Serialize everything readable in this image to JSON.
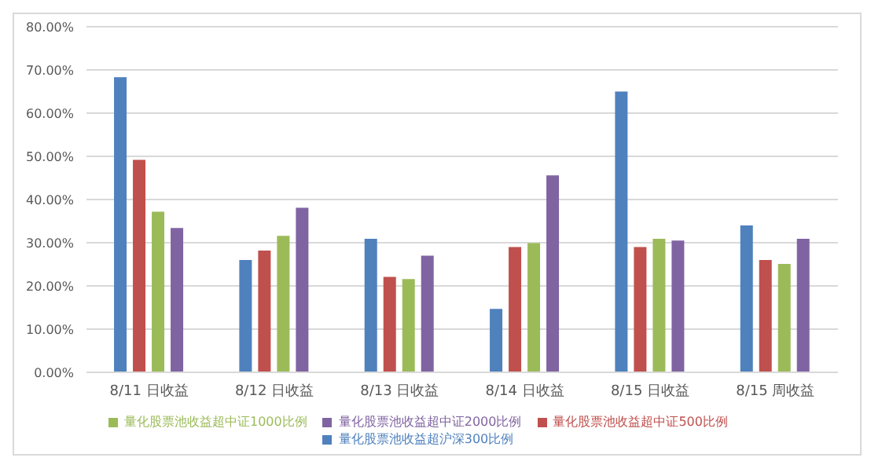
{
  "chart_data": {
    "type": "bar",
    "categories": [
      "8/11 日收益",
      "8/12 日收益",
      "8/13 日收益",
      "8/14 日收益",
      "8/15 日收益",
      "8/15 周收益"
    ],
    "series": [
      {
        "name": "量化股票池收益超沪深300比例",
        "color": "#4f81bd",
        "values": [
          68.3,
          26.0,
          30.9,
          14.7,
          65.0,
          34.0
        ]
      },
      {
        "name": "量化股票池收益超中证500比例",
        "color": "#c0504d",
        "values": [
          49.2,
          28.2,
          22.1,
          29.0,
          29.0,
          26.0
        ]
      },
      {
        "name": "量化股票池收益超中证1000比例",
        "color": "#9bbb59",
        "values": [
          37.2,
          31.6,
          21.6,
          29.9,
          30.9,
          25.1
        ]
      },
      {
        "name": "量化股票池收益超中证2000比例",
        "color": "#8064a2",
        "values": [
          33.4,
          38.1,
          27.0,
          45.6,
          30.5,
          30.9
        ]
      }
    ],
    "ylim": [
      0,
      80
    ],
    "yticks": [
      {
        "value": 0,
        "label": "0.00%"
      },
      {
        "value": 10,
        "label": "10.00%"
      },
      {
        "value": 20,
        "label": "20.00%"
      },
      {
        "value": 30,
        "label": "30.00%"
      },
      {
        "value": 40,
        "label": "40.00%"
      },
      {
        "value": 50,
        "label": "50.00%"
      },
      {
        "value": 60,
        "label": "60.00%"
      },
      {
        "value": 70,
        "label": "70.00%"
      },
      {
        "value": 80,
        "label": "80.00%"
      }
    ],
    "grid": "y",
    "legend": "bottom"
  }
}
